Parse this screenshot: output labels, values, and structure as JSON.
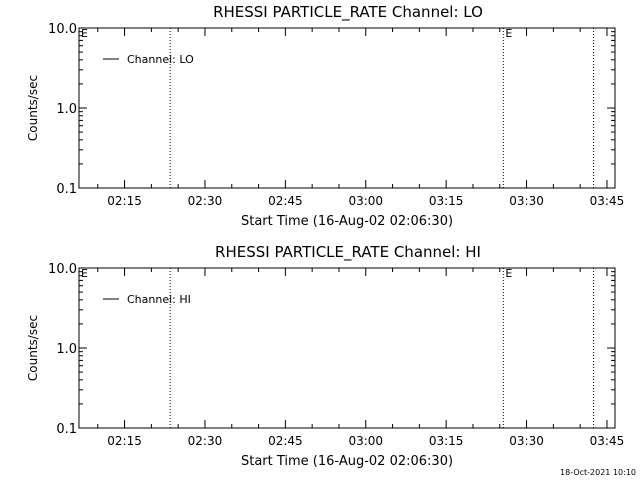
{
  "footer": {
    "timestamp": "18-Oct-2021 10:10"
  },
  "chart_data": [
    {
      "type": "line",
      "title": "RHESSI PARTICLE_RATE Channel: LO",
      "xlabel": "Start Time (16-Aug-02 02:06:30)",
      "ylabel": "Counts/sec",
      "y_scale": "log",
      "ylim": [
        0.1,
        10.0
      ],
      "y_ticks": [
        "0.1",
        "1.0",
        "10.0"
      ],
      "x_ticks": [
        "02:15",
        "02:30",
        "02:45",
        "03:00",
        "03:15",
        "03:30",
        "03:45"
      ],
      "x_tick_times": [
        "02:15",
        "02:30",
        "02:45",
        "03:00",
        "03:15",
        "03:30",
        "03:45"
      ],
      "xlim": [
        "02:06:30",
        "03:46:30"
      ],
      "legend": {
        "placement": "top-left",
        "entries": [
          "Channel: LO"
        ]
      },
      "markers": [
        {
          "time": "02:23:30",
          "label": ""
        },
        {
          "time": "03:25:40",
          "label": "E"
        },
        {
          "time": "03:42:30",
          "label": ""
        }
      ],
      "corner_label": "E",
      "series": [
        {
          "name": "Channel: LO",
          "values": []
        }
      ]
    },
    {
      "type": "line",
      "title": "RHESSI PARTICLE_RATE Channel: HI",
      "xlabel": "Start Time (16-Aug-02 02:06:30)",
      "ylabel": "Counts/sec",
      "y_scale": "log",
      "ylim": [
        0.1,
        10.0
      ],
      "y_ticks": [
        "0.1",
        "1.0",
        "10.0"
      ],
      "x_ticks": [
        "02:15",
        "02:30",
        "02:45",
        "03:00",
        "03:15",
        "03:30",
        "03:45"
      ],
      "x_tick_times": [
        "02:15",
        "02:30",
        "02:45",
        "03:00",
        "03:15",
        "03:30",
        "03:45"
      ],
      "xlim": [
        "02:06:30",
        "03:46:30"
      ],
      "legend": {
        "placement": "top-left",
        "entries": [
          "Channel: HI"
        ]
      },
      "markers": [
        {
          "time": "02:23:30",
          "label": ""
        },
        {
          "time": "03:25:40",
          "label": "E"
        },
        {
          "time": "03:42:30",
          "label": ""
        }
      ],
      "corner_label": "E",
      "series": [
        {
          "name": "Channel: HI",
          "values": []
        }
      ]
    }
  ]
}
